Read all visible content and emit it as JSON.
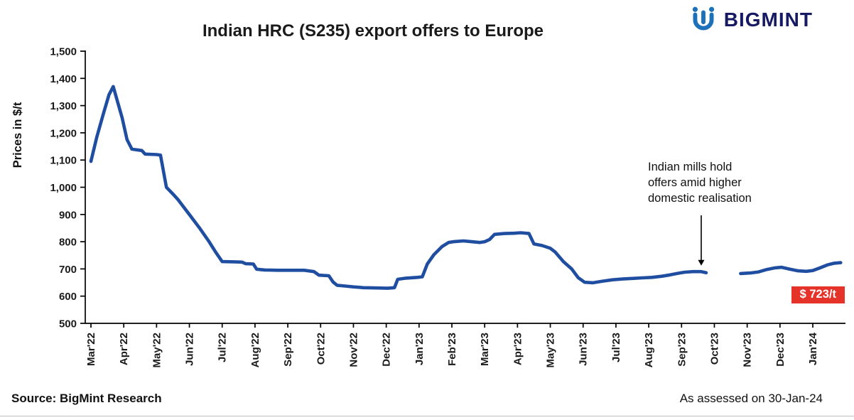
{
  "brand": {
    "name": "BIGMINT",
    "icon_color": "#1d71b8",
    "text_color": "#171a63"
  },
  "chart_data": {
    "type": "line",
    "title": "Indian HRC (S235) export offers to Europe",
    "ylabel": "Prices in $/t",
    "ylim": [
      500,
      1500
    ],
    "ytick_step": 100,
    "grid": false,
    "legend": "none",
    "x_tick_labels": [
      "Mar'22",
      "Apr'22",
      "May'22",
      "Jun'22",
      "Jul'22",
      "Aug'22",
      "Sep'22",
      "Oct'22",
      "Nov'22",
      "Dec'22",
      "Jan'23",
      "Feb'23",
      "Mar'23",
      "Apr'23",
      "May'23",
      "Jun'23",
      "Jul'23",
      "Aug'23",
      "Sep'23",
      "Oct'23",
      "Nov'23",
      "Dec'23",
      "Jan'24"
    ],
    "series": [
      {
        "name": "Indian HRC (S235) export offer price",
        "color": "#1f4ea1",
        "points": [
          [
            0.0,
            1095
          ],
          [
            0.18,
            1185
          ],
          [
            0.38,
            1270
          ],
          [
            0.55,
            1340
          ],
          [
            0.68,
            1370
          ],
          [
            0.82,
            1310
          ],
          [
            0.95,
            1255
          ],
          [
            1.1,
            1175
          ],
          [
            1.25,
            1140
          ],
          [
            1.55,
            1135
          ],
          [
            1.65,
            1122
          ],
          [
            2.0,
            1120
          ],
          [
            2.12,
            1118
          ],
          [
            2.3,
            1000
          ],
          [
            2.5,
            975
          ],
          [
            2.65,
            955
          ],
          [
            3.0,
            900
          ],
          [
            3.3,
            852
          ],
          [
            3.6,
            800
          ],
          [
            3.8,
            762
          ],
          [
            4.0,
            727
          ],
          [
            4.35,
            726
          ],
          [
            4.6,
            725
          ],
          [
            4.72,
            719
          ],
          [
            4.95,
            718
          ],
          [
            5.05,
            699
          ],
          [
            5.3,
            696
          ],
          [
            5.7,
            695
          ],
          [
            6.1,
            695
          ],
          [
            6.5,
            695
          ],
          [
            6.8,
            690
          ],
          [
            6.95,
            677
          ],
          [
            7.25,
            675
          ],
          [
            7.38,
            652
          ],
          [
            7.5,
            640
          ],
          [
            7.75,
            637
          ],
          [
            8.0,
            634
          ],
          [
            8.3,
            631
          ],
          [
            8.7,
            630
          ],
          [
            9.05,
            629
          ],
          [
            9.25,
            631
          ],
          [
            9.35,
            662
          ],
          [
            9.6,
            666
          ],
          [
            9.95,
            669
          ],
          [
            10.1,
            671
          ],
          [
            10.25,
            718
          ],
          [
            10.45,
            752
          ],
          [
            10.7,
            782
          ],
          [
            10.9,
            797
          ],
          [
            11.05,
            800
          ],
          [
            11.35,
            803
          ],
          [
            11.6,
            800
          ],
          [
            11.85,
            797
          ],
          [
            12.0,
            800
          ],
          [
            12.15,
            808
          ],
          [
            12.3,
            827
          ],
          [
            12.6,
            830
          ],
          [
            12.9,
            831
          ],
          [
            13.1,
            833
          ],
          [
            13.35,
            830
          ],
          [
            13.5,
            792
          ],
          [
            13.75,
            786
          ],
          [
            14.0,
            776
          ],
          [
            14.15,
            762
          ],
          [
            14.4,
            727
          ],
          [
            14.65,
            700
          ],
          [
            14.85,
            668
          ],
          [
            15.05,
            651
          ],
          [
            15.3,
            649
          ],
          [
            15.6,
            655
          ],
          [
            15.9,
            660
          ],
          [
            16.2,
            663
          ],
          [
            16.5,
            665
          ],
          [
            16.8,
            667
          ],
          [
            17.1,
            669
          ],
          [
            17.4,
            673
          ],
          [
            17.65,
            678
          ],
          [
            17.9,
            684
          ],
          [
            18.1,
            688
          ],
          [
            18.35,
            690
          ],
          [
            18.6,
            690
          ],
          [
            18.75,
            686
          ],
          null,
          [
            19.8,
            683
          ],
          [
            20.1,
            685
          ],
          [
            20.35,
            689
          ],
          [
            20.6,
            698
          ],
          [
            20.85,
            704
          ],
          [
            21.05,
            706
          ],
          [
            21.3,
            699
          ],
          [
            21.55,
            693
          ],
          [
            21.8,
            691
          ],
          [
            22.0,
            694
          ],
          [
            22.2,
            703
          ],
          [
            22.45,
            715
          ],
          [
            22.65,
            721
          ],
          [
            22.85,
            723
          ]
        ]
      }
    ],
    "annotation": {
      "text": "Indian mills hold\noffers amid higher\ndomestic realisation",
      "x": 18.6,
      "arrow_tip_value": 712
    },
    "end_label": {
      "text": "$ 723/t",
      "color": "#e6332a",
      "value": 723
    }
  },
  "footer": {
    "source": "Source: BigMint Research",
    "assessed": "As assessed on 30-Jan-24"
  }
}
